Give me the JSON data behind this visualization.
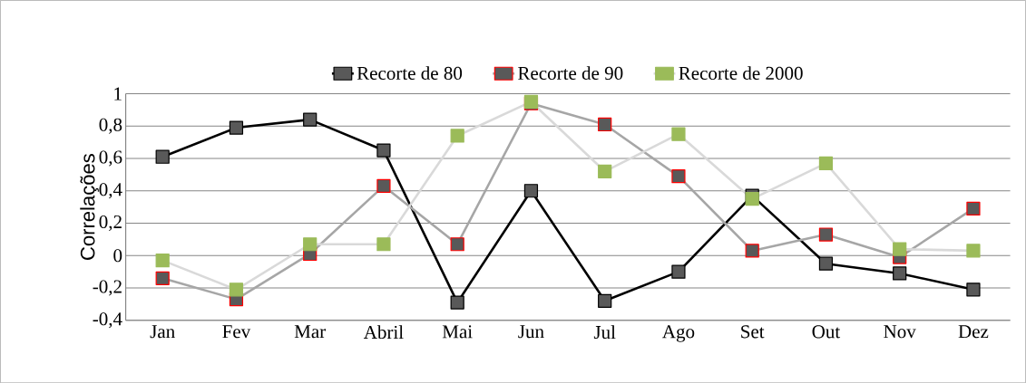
{
  "chart_data": {
    "type": "line",
    "ylabel": "Correlações",
    "categories": [
      "Jan",
      "Fev",
      "Mar",
      "Abril",
      "Mai",
      "Jun",
      "Jul",
      "Ago",
      "Set",
      "Out",
      "Nov",
      "Dez"
    ],
    "series": [
      {
        "name": "Recorte de 80",
        "color": "#000000",
        "values": [
          0.61,
          0.79,
          0.84,
          0.65,
          -0.29,
          0.4,
          -0.28,
          -0.1,
          0.37,
          -0.05,
          -0.11,
          -0.21
        ]
      },
      {
        "name": "Recorte de 90",
        "color": "#a6a6a6",
        "values": [
          -0.14,
          -0.27,
          0.01,
          0.43,
          0.07,
          0.94,
          0.81,
          0.49,
          0.03,
          0.13,
          -0.01,
          0.29
        ]
      },
      {
        "name": "Recorte de 2000",
        "color": "#d9d9d9",
        "values": [
          -0.03,
          -0.21,
          0.07,
          0.07,
          0.74,
          0.95,
          0.52,
          0.75,
          0.35,
          0.57,
          0.04,
          0.03
        ]
      }
    ],
    "ylim": [
      -0.4,
      1
    ],
    "yticks": [
      {
        "value": -0.4,
        "label": "-0,4"
      },
      {
        "value": -0.2,
        "label": "-0,2"
      },
      0,
      {
        "value": 0.2,
        "label": "0,2"
      },
      {
        "value": 0.4,
        "label": "0,4"
      },
      {
        "value": 0.6,
        "label": "0,6"
      },
      {
        "value": 0.8,
        "label": "0,8"
      },
      1
    ],
    "grid": "y",
    "legend": "top",
    "marker": "square",
    "line_style": "solid"
  }
}
